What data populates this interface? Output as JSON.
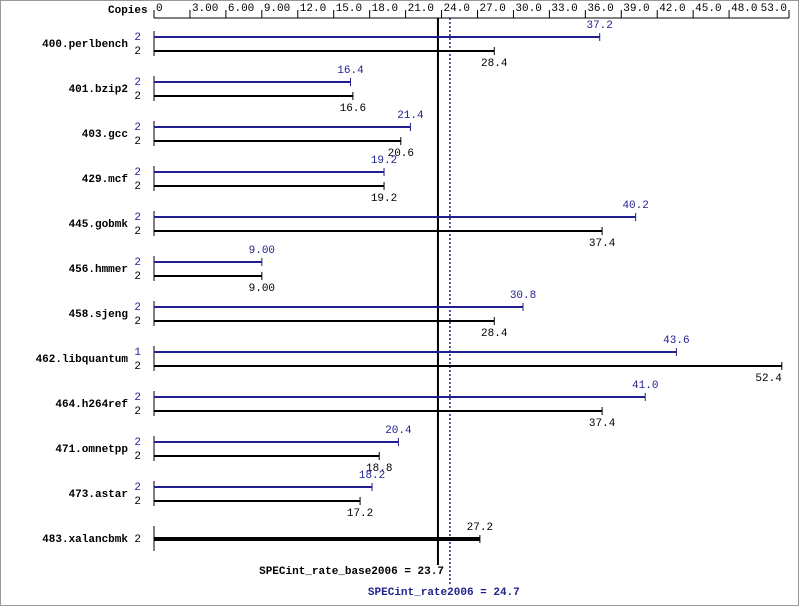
{
  "chart_data": {
    "type": "bar",
    "orientation": "horizontal",
    "copies_label": "Copies",
    "categories": [
      "400.perlbench",
      "401.bzip2",
      "403.gcc",
      "429.mcf",
      "445.gobmk",
      "456.hmmer",
      "458.sjeng",
      "462.libquantum",
      "464.h264ref",
      "471.omnetpp",
      "473.astar",
      "483.xalancbmk"
    ],
    "series": [
      {
        "color": "#1f1f8f",
        "values": [
          37.2,
          16.4,
          21.4,
          19.2,
          40.2,
          9.0,
          30.8,
          43.6,
          41.0,
          20.4,
          18.2,
          null
        ],
        "value_labels": [
          "37.2",
          "16.4",
          "21.4",
          "19.2",
          "40.2",
          "9.00",
          "30.8",
          "43.6",
          "41.0",
          "20.4",
          "18.2",
          null
        ],
        "copies": [
          2,
          2,
          2,
          2,
          2,
          2,
          2,
          1,
          2,
          2,
          2,
          null
        ]
      },
      {
        "color": "#000000",
        "values": [
          28.4,
          16.6,
          20.6,
          19.2,
          37.4,
          9.0,
          28.4,
          52.4,
          37.4,
          18.8,
          17.2,
          27.2
        ],
        "value_labels": [
          "28.4",
          "16.6",
          "20.6",
          "19.2",
          "37.4",
          "9.00",
          "28.4",
          "52.4",
          "37.4",
          "18.8",
          "17.2",
          "27.2"
        ],
        "copies": [
          2,
          2,
          2,
          2,
          2,
          2,
          2,
          2,
          2,
          2,
          2,
          2
        ]
      }
    ],
    "xlim": [
      0,
      53
    ],
    "xticks": [
      0,
      {
        "value": 3,
        "label": "3.00"
      },
      {
        "value": 6,
        "label": "6.00"
      },
      {
        "value": 9,
        "label": "9.00"
      },
      {
        "value": 12,
        "label": "12.0"
      },
      {
        "value": 15,
        "label": "15.0"
      },
      {
        "value": 18,
        "label": "18.0"
      },
      {
        "value": 21,
        "label": "21.0"
      },
      {
        "value": 24,
        "label": "24.0"
      },
      {
        "value": 27,
        "label": "27.0"
      },
      {
        "value": 30,
        "label": "30.0"
      },
      {
        "value": 33,
        "label": "33.0"
      },
      {
        "value": 36,
        "label": "36.0"
      },
      {
        "value": 39,
        "label": "39.0"
      },
      {
        "value": 42,
        "label": "42.0"
      },
      {
        "value": 45,
        "label": "45.0"
      },
      {
        "value": 48,
        "label": "48.0"
      },
      {
        "value": 53,
        "label": "53.0"
      }
    ],
    "summary": [
      {
        "value": 23.7,
        "label": "SPECint_rate_base2006 = 23.7",
        "color": "#000000"
      },
      {
        "value": 24.7,
        "label": "SPECint_rate2006 = 24.7",
        "color": "#1f1f8f"
      }
    ]
  }
}
